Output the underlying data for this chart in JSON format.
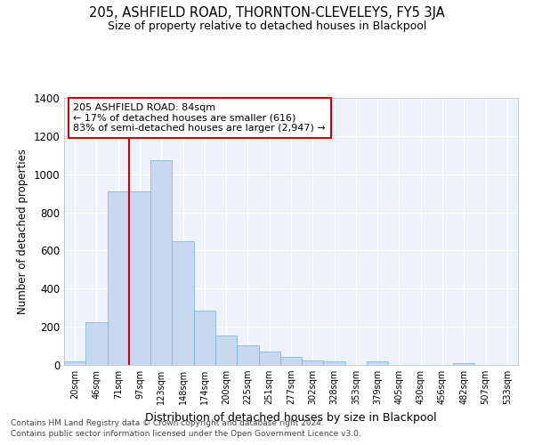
{
  "title_line1": "205, ASHFIELD ROAD, THORNTON-CLEVELEYS, FY5 3JA",
  "title_line2": "Size of property relative to detached houses in Blackpool",
  "xlabel": "Distribution of detached houses by size in Blackpool",
  "ylabel": "Number of detached properties",
  "bar_labels": [
    "20sqm",
    "46sqm",
    "71sqm",
    "97sqm",
    "123sqm",
    "148sqm",
    "174sqm",
    "200sqm",
    "225sqm",
    "251sqm",
    "277sqm",
    "302sqm",
    "328sqm",
    "353sqm",
    "379sqm",
    "405sqm",
    "430sqm",
    "456sqm",
    "482sqm",
    "507sqm",
    "533sqm"
  ],
  "bar_values": [
    20,
    225,
    910,
    910,
    1075,
    650,
    285,
    155,
    105,
    70,
    40,
    25,
    20,
    0,
    20,
    0,
    0,
    0,
    10,
    0,
    0
  ],
  "bar_color": "#c6d9f0",
  "bar_edgecolor": "#7aafd4",
  "background_color": "#eef2fa",
  "grid_color": "#ffffff",
  "annotation_line1": "205 ASHFIELD ROAD: 84sqm",
  "annotation_line2": "← 17% of detached houses are smaller (616)",
  "annotation_line3": "83% of semi-detached houses are larger (2,947) →",
  "annotation_box_color": "#ffffff",
  "annotation_box_edgecolor": "#cc0000",
  "vline_color": "#cc0000",
  "vline_pos": 2.5,
  "ylim": [
    0,
    1400
  ],
  "yticks": [
    0,
    200,
    400,
    600,
    800,
    1000,
    1200,
    1400
  ],
  "footnote1": "Contains HM Land Registry data © Crown copyright and database right 2024.",
  "footnote2": "Contains public sector information licensed under the Open Government Licence v3.0."
}
